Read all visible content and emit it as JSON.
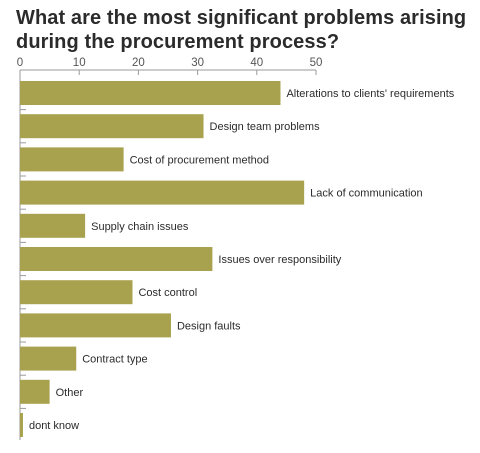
{
  "chart_data": {
    "type": "bar",
    "orientation": "horizontal",
    "title": "What are the most significant problems arising during the procurement process?",
    "xlim": [
      0,
      50
    ],
    "ticks": [
      "0",
      "10",
      "20",
      "30",
      "40",
      "50"
    ],
    "categories": [
      "Alterations to clients' requirements",
      "Design team problems",
      "Cost of procurement method",
      "Lack of communication",
      "Supply chain issues",
      "Issues over responsibility",
      "Cost control",
      "Design faults",
      "Contract type",
      "Other",
      "dont know"
    ],
    "values": [
      44,
      31,
      17.5,
      48,
      11,
      32.5,
      19,
      25.5,
      9.5,
      5,
      0.5
    ],
    "bar_color": "#a8a24e",
    "grid": false
  }
}
